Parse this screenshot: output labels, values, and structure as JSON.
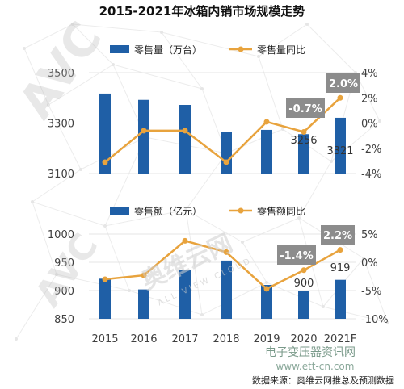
{
  "title": "2015-2021年冰箱内销市场规模走势",
  "categories": [
    "2015",
    "2016",
    "2017",
    "2018",
    "2019",
    "2020",
    "2021F"
  ],
  "colors": {
    "bar": "#1F5FA6",
    "line": "#E8A33D",
    "callout": "#8C8C8C",
    "grid": "#e4e4e4",
    "axis": "#404040"
  },
  "watermark": {
    "brand": "AVC",
    "brand_cn": "奥维云网",
    "brand_en": "ALL VIEW CLOUD"
  },
  "footer": {
    "site_name": "电子变压器资讯网",
    "site_url": "www.ett-cn.com",
    "source": "数据来源：奥维云网推总及预测数据"
  },
  "chart_data": [
    {
      "type": "bar+line",
      "x": [
        "2015",
        "2016",
        "2017",
        "2018",
        "2019",
        "2020",
        "2021F"
      ],
      "series": [
        {
          "name": "零售量（万台）",
          "type": "bar",
          "axis": "left",
          "values": [
            3417,
            3392,
            3372,
            3265,
            3273,
            3256,
            3321
          ]
        },
        {
          "name": "零售量同比",
          "type": "line",
          "axis": "right",
          "values": [
            -3.1,
            -0.6,
            -0.6,
            -3.1,
            0.1,
            -0.7,
            2.0
          ]
        }
      ],
      "left_axis": {
        "min": 3100,
        "max": 3500,
        "ticks": [
          3100,
          3300,
          3500
        ]
      },
      "right_axis": {
        "min": -4,
        "max": 4,
        "ticks": [
          "-4%",
          "-2%",
          "0%",
          "2%",
          "4%"
        ]
      },
      "data_labels": [
        {
          "index": 5,
          "text": "3256"
        },
        {
          "index": 6,
          "text": "3321"
        }
      ],
      "callouts": [
        {
          "index": 5,
          "text": "-0.7%"
        },
        {
          "index": 6,
          "text": "2.0%"
        }
      ],
      "legend": "top"
    },
    {
      "type": "bar+line",
      "x": [
        "2015",
        "2016",
        "2017",
        "2018",
        "2019",
        "2020",
        "2021F"
      ],
      "series": [
        {
          "name": "零售额（亿元）",
          "type": "bar",
          "axis": "left",
          "values": [
            921,
            902,
            936,
            953,
            910,
            900,
            919
          ]
        },
        {
          "name": "零售额同比",
          "type": "line",
          "axis": "right",
          "values": [
            -3.0,
            -2.3,
            3.8,
            1.8,
            -4.7,
            -1.4,
            2.2
          ]
        }
      ],
      "left_axis": {
        "min": 850,
        "max": 1000,
        "ticks": [
          850,
          900,
          950,
          1000
        ]
      },
      "right_axis": {
        "min": -10,
        "max": 5,
        "ticks": [
          "-10%",
          "-5%",
          "0%",
          "5%"
        ]
      },
      "data_labels": [
        {
          "index": 5,
          "text": "900"
        },
        {
          "index": 6,
          "text": "919"
        }
      ],
      "callouts": [
        {
          "index": 5,
          "text": "-1.4%"
        },
        {
          "index": 6,
          "text": "2.2%"
        }
      ],
      "legend": "top"
    }
  ]
}
